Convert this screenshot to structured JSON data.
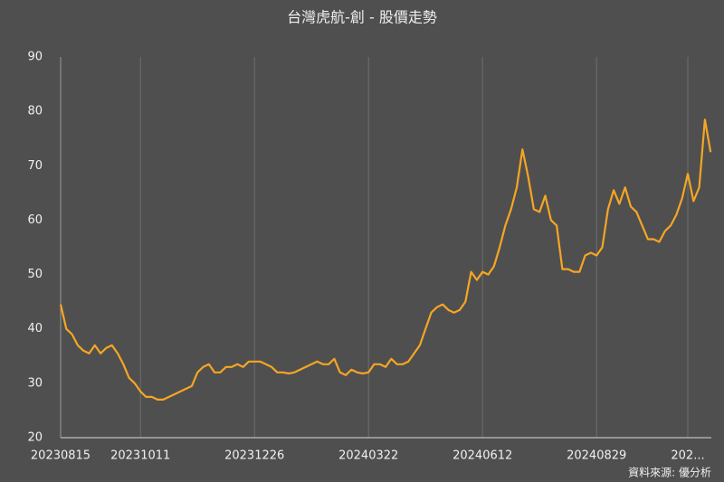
{
  "chart_data": {
    "type": "line",
    "title": "台灣虎航-創 - 股價走勢",
    "source": "資料來源: 優分析",
    "categories": [
      "20230815",
      null,
      null,
      null,
      null,
      null,
      null,
      null,
      null,
      null,
      null,
      null,
      null,
      null,
      "20231011",
      null,
      null,
      null,
      null,
      null,
      null,
      null,
      null,
      null,
      null,
      null,
      null,
      null,
      null,
      null,
      null,
      null,
      null,
      null,
      "20231226",
      null,
      null,
      null,
      null,
      null,
      null,
      null,
      null,
      null,
      null,
      null,
      null,
      null,
      null,
      null,
      null,
      null,
      null,
      null,
      "20240322",
      null,
      null,
      null,
      null,
      null,
      null,
      null,
      null,
      null,
      null,
      null,
      null,
      null,
      null,
      null,
      null,
      null,
      null,
      null,
      "20240612",
      null,
      null,
      null,
      null,
      null,
      null,
      null,
      null,
      null,
      null,
      null,
      null,
      null,
      null,
      null,
      null,
      null,
      null,
      null,
      "20240829",
      null,
      null,
      null,
      null,
      null,
      null,
      null,
      null,
      null,
      null,
      null,
      null,
      null,
      null,
      null,
      "202...",
      null,
      null,
      null,
      null
    ],
    "series": [
      {
        "name": "股價",
        "color": "#f5a623",
        "values": [
          44.5,
          40,
          39,
          37,
          36,
          35.5,
          37,
          35.5,
          36.5,
          37,
          35.5,
          33.5,
          31,
          30,
          28.5,
          27.5,
          27.5,
          27,
          27,
          27.5,
          28,
          28.5,
          29,
          29.5,
          32,
          33,
          33.5,
          32,
          32,
          33,
          33,
          33.5,
          33,
          34,
          34,
          34,
          33.5,
          33,
          32,
          32,
          31.8,
          32,
          32.5,
          33,
          33.5,
          34,
          33.5,
          33.5,
          34.5,
          32,
          31.5,
          32.5,
          32,
          31.8,
          32,
          33.5,
          33.5,
          33,
          34.5,
          33.5,
          33.5,
          34,
          35.5,
          37,
          40,
          43,
          44,
          44.5,
          43.5,
          43,
          43.5,
          45,
          50.5,
          49,
          50.5,
          50,
          51.5,
          55,
          59,
          62,
          66,
          73,
          68,
          62,
          61.5,
          64.5,
          60,
          59,
          51,
          51,
          50.5,
          50.5,
          53.5,
          54,
          53.5,
          55,
          62,
          65.5,
          63,
          66,
          62.5,
          61.5,
          59,
          56.5,
          56.5,
          56,
          58,
          59,
          61,
          64,
          68.5,
          63.5,
          66,
          78.5,
          72.5
        ]
      }
    ],
    "ylim": [
      20,
      90
    ],
    "yticks": [
      20,
      30,
      40,
      50,
      60,
      70,
      80,
      90
    ],
    "grid": true
  }
}
